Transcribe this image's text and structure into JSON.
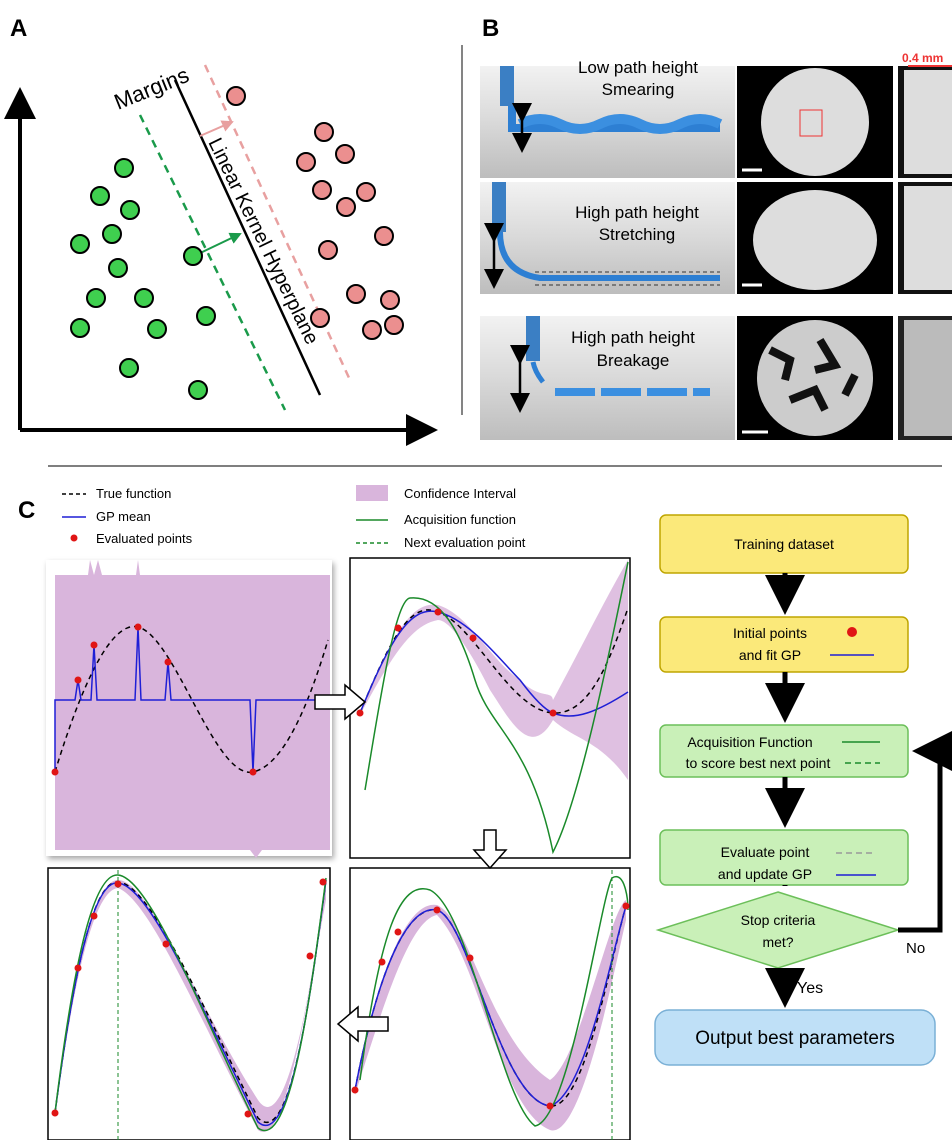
{
  "panel_a": {
    "label": "A",
    "margins": "Margins",
    "hyperplane": "Linear Kernel Hyperplane"
  },
  "panel_b": {
    "label": "B",
    "scale": "0.4 mm",
    "rows": [
      {
        "line1": "Low path height",
        "line2": "Smearing"
      },
      {
        "line1": "High path height",
        "line2": "Stretching"
      },
      {
        "line1": "High path height",
        "line2": "Breakage"
      }
    ]
  },
  "panel_c": {
    "label": "C",
    "legend": [
      "True function",
      "GP mean",
      "Evaluated points",
      "Confidence Interval",
      "Acquisition function",
      "Next evaluation point"
    ],
    "flow": {
      "training": "Training dataset",
      "initial_1": "Initial points",
      "initial_2": "and fit GP",
      "acq_1": "Acquisition Function",
      "acq_2": "to score best next point",
      "eval_1": "Evaluate point",
      "eval_2": "and update GP",
      "stop_1": "Stop criteria",
      "stop_2": "met?",
      "no": "No",
      "yes": "Yes",
      "output": "Output best parameters"
    }
  }
}
